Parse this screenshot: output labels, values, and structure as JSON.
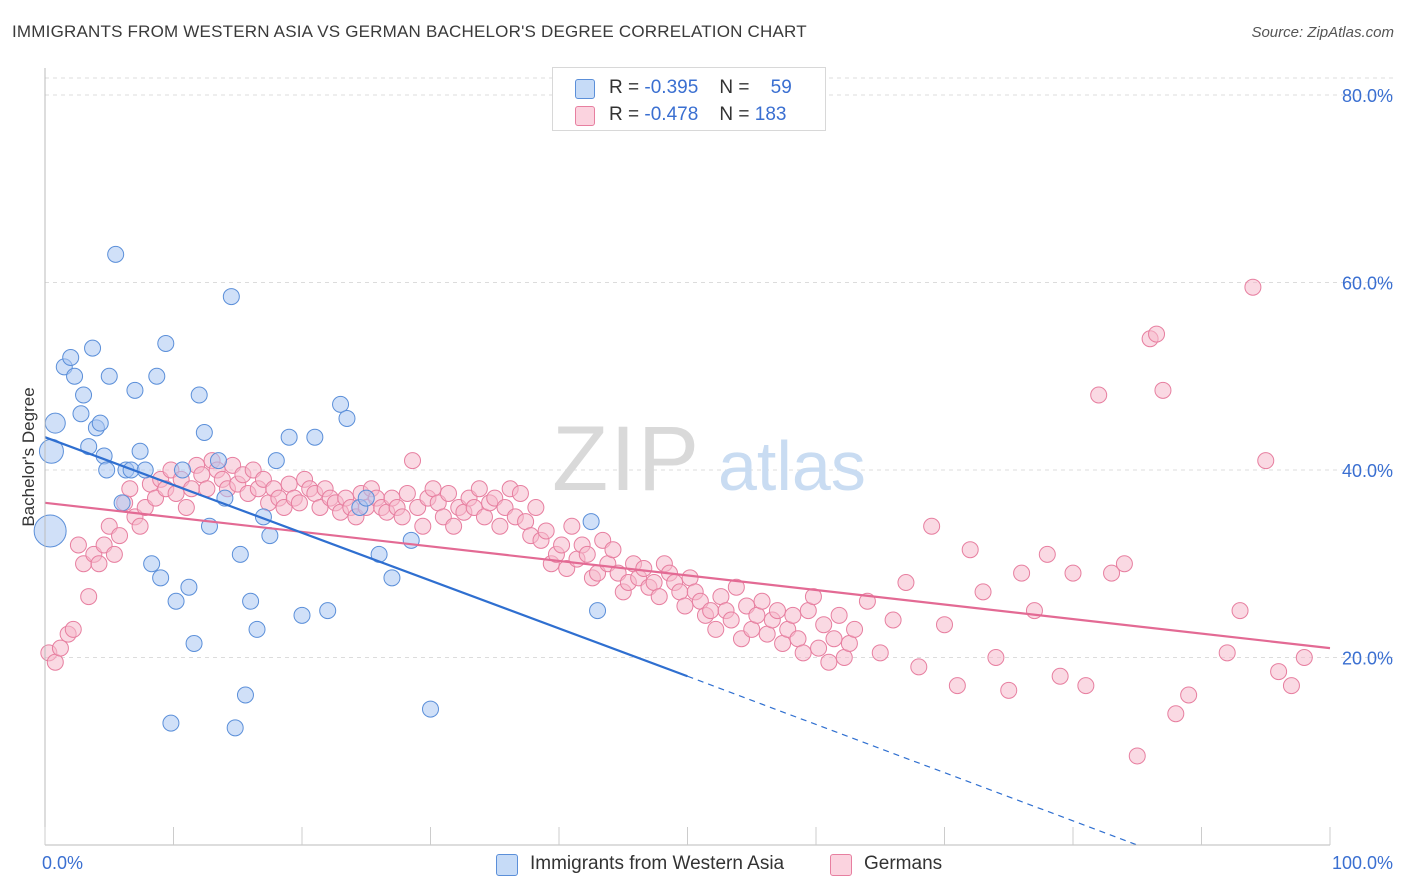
{
  "title": "IMMIGRANTS FROM WESTERN ASIA VS GERMAN BACHELOR'S DEGREE CORRELATION CHART",
  "source": "Source: ZipAtlas.com",
  "watermark": {
    "zip": "ZIP",
    "atlas": "atlas"
  },
  "legend": {
    "rows": [
      {
        "r_label": "R =",
        "r_value": "-0.395",
        "n_label": "N =",
        "n_value": "59",
        "color": "#a9c7f2"
      },
      {
        "r_label": "R =",
        "r_value": "-0.478",
        "n_label": "N =",
        "n_value": "183",
        "color": "#f6b9cc"
      }
    ]
  },
  "bottom_legend": {
    "series_a": "Immigrants from Western Asia",
    "series_b": "Germans"
  },
  "chart_data": {
    "type": "scatter",
    "title": "IMMIGRANTS FROM WESTERN ASIA VS GERMAN BACHELOR'S DEGREE CORRELATION CHART",
    "xlabel": "",
    "ylabel": "Bachelor's Degree",
    "xlim": [
      0,
      100
    ],
    "ylim": [
      0,
      80
    ],
    "x_ticks": [
      "0.0%",
      "100.0%"
    ],
    "y_ticks": [
      "20.0%",
      "40.0%",
      "60.0%",
      "80.0%"
    ],
    "y_tick_values": [
      20,
      40,
      60,
      80
    ],
    "grid": true,
    "legend_position": "top-center",
    "series": [
      {
        "name": "Immigrants from Western Asia",
        "color": "#a9c7f2",
        "stroke": "#5b8fd9",
        "trend": {
          "x0": 0,
          "y0": 43.5,
          "x1": 50,
          "y1": 18.0,
          "dashed_to_x": 85,
          "dashed_to_y": 0,
          "color": "#2f6fd0"
        },
        "points": [
          [
            0.5,
            42,
            12
          ],
          [
            0.4,
            33.5,
            16
          ],
          [
            0.8,
            45,
            10
          ],
          [
            1.5,
            51,
            8
          ],
          [
            2.0,
            52,
            8
          ],
          [
            2.3,
            50,
            8
          ],
          [
            2.8,
            46,
            8
          ],
          [
            3.0,
            48,
            8
          ],
          [
            3.4,
            42.5,
            8
          ],
          [
            3.7,
            53,
            8
          ],
          [
            4.0,
            44.5,
            8
          ],
          [
            4.3,
            45,
            8
          ],
          [
            4.6,
            41.5,
            8
          ],
          [
            4.8,
            40,
            8
          ],
          [
            5.0,
            50,
            8
          ],
          [
            5.5,
            63,
            8
          ],
          [
            6.0,
            36.5,
            8
          ],
          [
            6.3,
            40,
            8
          ],
          [
            6.7,
            40,
            8
          ],
          [
            7.0,
            48.5,
            8
          ],
          [
            7.4,
            42,
            8
          ],
          [
            7.8,
            40,
            8
          ],
          [
            8.3,
            30,
            8
          ],
          [
            8.7,
            50,
            8
          ],
          [
            9.0,
            28.5,
            8
          ],
          [
            9.4,
            53.5,
            8
          ],
          [
            9.8,
            13,
            8
          ],
          [
            10.2,
            26,
            8
          ],
          [
            10.7,
            40,
            8
          ],
          [
            11.2,
            27.5,
            8
          ],
          [
            11.6,
            21.5,
            8
          ],
          [
            12.0,
            48,
            8
          ],
          [
            12.4,
            44,
            8
          ],
          [
            12.8,
            34,
            8
          ],
          [
            13.5,
            41,
            8
          ],
          [
            14.0,
            37,
            8
          ],
          [
            14.5,
            58.5,
            8
          ],
          [
            14.8,
            12.5,
            8
          ],
          [
            15.2,
            31,
            8
          ],
          [
            15.6,
            16,
            8
          ],
          [
            16.0,
            26,
            8
          ],
          [
            16.5,
            23,
            8
          ],
          [
            17.0,
            35,
            8
          ],
          [
            17.5,
            33,
            8
          ],
          [
            18.0,
            41,
            8
          ],
          [
            19.0,
            43.5,
            8
          ],
          [
            20.0,
            24.5,
            8
          ],
          [
            21.0,
            43.5,
            8
          ],
          [
            22.0,
            25,
            8
          ],
          [
            23.0,
            47,
            8
          ],
          [
            23.5,
            45.5,
            8
          ],
          [
            24.5,
            36,
            8
          ],
          [
            25.0,
            37,
            8
          ],
          [
            26.0,
            31,
            8
          ],
          [
            27.0,
            28.5,
            8
          ],
          [
            28.5,
            32.5,
            8
          ],
          [
            30.0,
            14.5,
            8
          ],
          [
            43.0,
            25,
            8
          ],
          [
            42.5,
            34.5,
            8
          ]
        ]
      },
      {
        "name": "Germans",
        "color": "#f6b9cc",
        "stroke": "#e77fa0",
        "trend": {
          "x0": 0,
          "y0": 36.5,
          "x1": 100,
          "y1": 21.0,
          "color": "#e36a94"
        },
        "points": [
          [
            0.3,
            20.5
          ],
          [
            0.8,
            19.5
          ],
          [
            1.2,
            21
          ],
          [
            1.8,
            22.5
          ],
          [
            2.2,
            23
          ],
          [
            2.6,
            32
          ],
          [
            3.0,
            30
          ],
          [
            3.4,
            26.5
          ],
          [
            3.8,
            31
          ],
          [
            4.2,
            30
          ],
          [
            4.6,
            32
          ],
          [
            5.0,
            34
          ],
          [
            5.4,
            31
          ],
          [
            5.8,
            33
          ],
          [
            6.2,
            36.5
          ],
          [
            6.6,
            38
          ],
          [
            7.0,
            35
          ],
          [
            7.4,
            34
          ],
          [
            7.8,
            36
          ],
          [
            8.2,
            38.5
          ],
          [
            8.6,
            37
          ],
          [
            9.0,
            39
          ],
          [
            9.4,
            38
          ],
          [
            9.8,
            40
          ],
          [
            10.2,
            37.5
          ],
          [
            10.6,
            39
          ],
          [
            11.0,
            36
          ],
          [
            11.4,
            38
          ],
          [
            11.8,
            40.5
          ],
          [
            12.2,
            39.5
          ],
          [
            12.6,
            38
          ],
          [
            13.0,
            41
          ],
          [
            13.4,
            40
          ],
          [
            13.8,
            39
          ],
          [
            14.2,
            38
          ],
          [
            14.6,
            40.5
          ],
          [
            15.0,
            38.5
          ],
          [
            15.4,
            39.5
          ],
          [
            15.8,
            37.5
          ],
          [
            16.2,
            40
          ],
          [
            16.6,
            38
          ],
          [
            17.0,
            39
          ],
          [
            17.4,
            36.5
          ],
          [
            17.8,
            38
          ],
          [
            18.2,
            37
          ],
          [
            18.6,
            36
          ],
          [
            19.0,
            38.5
          ],
          [
            19.4,
            37
          ],
          [
            19.8,
            36.5
          ],
          [
            20.2,
            39
          ],
          [
            20.6,
            38
          ],
          [
            21.0,
            37.5
          ],
          [
            21.4,
            36
          ],
          [
            21.8,
            38
          ],
          [
            22.2,
            37
          ],
          [
            22.6,
            36.5
          ],
          [
            23.0,
            35.5
          ],
          [
            23.4,
            37
          ],
          [
            23.8,
            36
          ],
          [
            24.2,
            35
          ],
          [
            24.6,
            37.5
          ],
          [
            25.0,
            36
          ],
          [
            25.4,
            38
          ],
          [
            25.8,
            37
          ],
          [
            26.2,
            36
          ],
          [
            26.6,
            35.5
          ],
          [
            27.0,
            37
          ],
          [
            27.4,
            36
          ],
          [
            27.8,
            35
          ],
          [
            28.2,
            37.5
          ],
          [
            28.6,
            41
          ],
          [
            29.0,
            36
          ],
          [
            29.4,
            34
          ],
          [
            29.8,
            37
          ],
          [
            30.2,
            38
          ],
          [
            30.6,
            36.5
          ],
          [
            31.0,
            35
          ],
          [
            31.4,
            37.5
          ],
          [
            31.8,
            34
          ],
          [
            32.2,
            36
          ],
          [
            32.6,
            35.5
          ],
          [
            33.0,
            37
          ],
          [
            33.4,
            36
          ],
          [
            33.8,
            38
          ],
          [
            34.2,
            35
          ],
          [
            34.6,
            36.5
          ],
          [
            35.0,
            37
          ],
          [
            35.4,
            34
          ],
          [
            35.8,
            36
          ],
          [
            36.2,
            38
          ],
          [
            36.6,
            35
          ],
          [
            37.0,
            37.5
          ],
          [
            37.4,
            34.5
          ],
          [
            37.8,
            33
          ],
          [
            38.2,
            36
          ],
          [
            38.6,
            32.5
          ],
          [
            39.0,
            33.5
          ],
          [
            39.4,
            30
          ],
          [
            39.8,
            31
          ],
          [
            40.2,
            32
          ],
          [
            40.6,
            29.5
          ],
          [
            41.0,
            34
          ],
          [
            41.4,
            30.5
          ],
          [
            41.8,
            32
          ],
          [
            42.2,
            31
          ],
          [
            42.6,
            28.5
          ],
          [
            43.0,
            29
          ],
          [
            43.4,
            32.5
          ],
          [
            43.8,
            30
          ],
          [
            44.2,
            31.5
          ],
          [
            44.6,
            29
          ],
          [
            45.0,
            27
          ],
          [
            45.4,
            28
          ],
          [
            45.8,
            30
          ],
          [
            46.2,
            28.5
          ],
          [
            46.6,
            29.5
          ],
          [
            47.0,
            27.5
          ],
          [
            47.4,
            28
          ],
          [
            47.8,
            26.5
          ],
          [
            48.2,
            30
          ],
          [
            48.6,
            29
          ],
          [
            49.0,
            28
          ],
          [
            49.4,
            27
          ],
          [
            49.8,
            25.5
          ],
          [
            50.2,
            28.5
          ],
          [
            50.6,
            27
          ],
          [
            51.0,
            26
          ],
          [
            51.4,
            24.5
          ],
          [
            51.8,
            25
          ],
          [
            52.2,
            23
          ],
          [
            52.6,
            26.5
          ],
          [
            53.0,
            25
          ],
          [
            53.4,
            24
          ],
          [
            53.8,
            27.5
          ],
          [
            54.2,
            22
          ],
          [
            54.6,
            25.5
          ],
          [
            55.0,
            23
          ],
          [
            55.4,
            24.5
          ],
          [
            55.8,
            26
          ],
          [
            56.2,
            22.5
          ],
          [
            56.6,
            24
          ],
          [
            57.0,
            25
          ],
          [
            57.4,
            21.5
          ],
          [
            57.8,
            23
          ],
          [
            58.2,
            24.5
          ],
          [
            58.6,
            22
          ],
          [
            59.0,
            20.5
          ],
          [
            59.4,
            25
          ],
          [
            59.8,
            26.5
          ],
          [
            60.2,
            21
          ],
          [
            60.6,
            23.5
          ],
          [
            61.0,
            19.5
          ],
          [
            61.4,
            22
          ],
          [
            61.8,
            24.5
          ],
          [
            62.2,
            20
          ],
          [
            62.6,
            21.5
          ],
          [
            63.0,
            23
          ],
          [
            64.0,
            26
          ],
          [
            65.0,
            20.5
          ],
          [
            66.0,
            24
          ],
          [
            67.0,
            28
          ],
          [
            68.0,
            19
          ],
          [
            69.0,
            34
          ],
          [
            70.0,
            23.5
          ],
          [
            71.0,
            17
          ],
          [
            72.0,
            31.5
          ],
          [
            73.0,
            27
          ],
          [
            74.0,
            20
          ],
          [
            75.0,
            16.5
          ],
          [
            76.0,
            29
          ],
          [
            77.0,
            25
          ],
          [
            78.0,
            31
          ],
          [
            79.0,
            18
          ],
          [
            80.0,
            29
          ],
          [
            81.0,
            17
          ],
          [
            82.0,
            48
          ],
          [
            83.0,
            29
          ],
          [
            84.0,
            30
          ],
          [
            85.0,
            9.5
          ],
          [
            86.0,
            54
          ],
          [
            86.5,
            54.5
          ],
          [
            87.0,
            48.5
          ],
          [
            88.0,
            14
          ],
          [
            89.0,
            16
          ],
          [
            92.0,
            20.5
          ],
          [
            93.0,
            25
          ],
          [
            94.0,
            59.5
          ],
          [
            95.0,
            41
          ],
          [
            96.0,
            18.5
          ],
          [
            97.0,
            17
          ],
          [
            98.0,
            20
          ]
        ]
      }
    ]
  }
}
